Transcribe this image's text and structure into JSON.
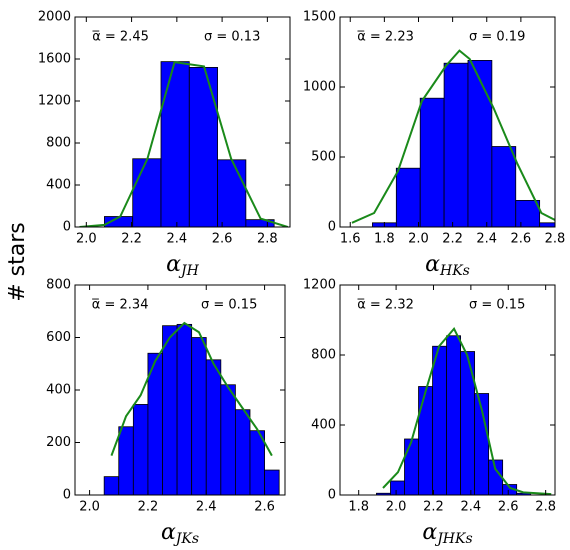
{
  "ylabel": "# stars",
  "chart_data": [
    {
      "type": "histogram",
      "xlabel": {
        "symbol": "α",
        "subscript": "JH"
      },
      "annotations": [
        "α̅ = 2.45",
        "σ =  0.13"
      ],
      "bins": [
        2.08,
        2.205,
        2.33,
        2.455,
        2.58,
        2.705,
        2.83
      ],
      "values": [
        100,
        650,
        1575,
        1520,
        640,
        70
      ],
      "color": "#0000ff",
      "line": {
        "color": "#1a8a1a",
        "x": [
          1.97,
          2.08,
          2.15,
          2.27,
          2.39,
          2.52,
          2.64,
          2.77,
          2.89
        ],
        "values": [
          0,
          20,
          100,
          650,
          1570,
          1530,
          650,
          80,
          0
        ]
      },
      "xlim": [
        1.95,
        2.9
      ],
      "ylim": [
        0,
        2000
      ],
      "xticks": [
        {
          "value": 2.0,
          "label": "2.0"
        },
        2.2,
        2.4,
        2.6,
        2.8
      ],
      "yticks": [
        0,
        400,
        800,
        1200,
        1600,
        2000
      ]
    },
    {
      "type": "histogram",
      "xlabel": {
        "symbol": "α",
        "subscript": "HKs"
      },
      "annotations": [
        "α̅ = 2.23",
        "σ =  0.19"
      ],
      "bins": [
        1.73,
        1.87,
        2.01,
        2.15,
        2.29,
        2.43,
        2.57,
        2.71,
        2.85
      ],
      "values": [
        30,
        420,
        920,
        1170,
        1190,
        575,
        190,
        30
      ],
      "color": "#0000ff",
      "line": {
        "color": "#1a8a1a",
        "x": [
          1.61,
          1.74,
          1.88,
          2.02,
          2.16,
          2.24,
          2.3,
          2.44,
          2.58,
          2.72,
          2.8
        ],
        "values": [
          30,
          100,
          400,
          900,
          1150,
          1260,
          1200,
          850,
          450,
          100,
          50
        ]
      },
      "xlim": [
        1.54,
        2.8
      ],
      "ylim": [
        0,
        1500
      ],
      "xticks": [
        1.6,
        1.8,
        {
          "value": 2.0,
          "label": "2.0"
        },
        2.2,
        2.4,
        2.6,
        2.8
      ],
      "yticks": [
        0,
        500,
        1000,
        1500
      ]
    },
    {
      "type": "histogram",
      "xlabel": {
        "symbol": "α",
        "subscript": "JKs"
      },
      "annotations": [
        "α̅ = 2.34",
        "σ =  0.15"
      ],
      "bins": [
        2.05,
        2.1,
        2.15,
        2.2,
        2.25,
        2.3,
        2.35,
        2.4,
        2.45,
        2.5,
        2.55,
        2.6,
        2.65
      ],
      "values": [
        70,
        260,
        345,
        540,
        645,
        650,
        600,
        515,
        420,
        325,
        245,
        95
      ],
      "color": "#0000ff",
      "line": {
        "color": "#1a8a1a",
        "x": [
          2.075,
          2.125,
          2.175,
          2.225,
          2.275,
          2.325,
          2.375,
          2.425,
          2.475,
          2.525,
          2.575,
          2.625
        ],
        "values": [
          150,
          300,
          380,
          510,
          600,
          655,
          620,
          500,
          410,
          330,
          250,
          150
        ]
      },
      "xlim": [
        1.95,
        2.67
      ],
      "ylim": [
        0,
        800
      ],
      "xticks": [
        {
          "value": 2.0,
          "label": "2.0"
        },
        2.2,
        2.4,
        2.6
      ],
      "yticks": [
        0,
        200,
        400,
        600,
        800
      ]
    },
    {
      "type": "histogram",
      "xlabel": {
        "symbol": "α",
        "subscript": "JHKs"
      },
      "annotations": [
        "α̅ = 2.32",
        "σ =  0.15"
      ],
      "bins": [
        1.895,
        1.97,
        2.045,
        2.12,
        2.195,
        2.27,
        2.345,
        2.42,
        2.495,
        2.57,
        2.645,
        2.72
      ],
      "values": [
        10,
        80,
        320,
        620,
        850,
        910,
        820,
        580,
        200,
        60,
        10
      ],
      "color": "#0000ff",
      "line": {
        "color": "#1a8a1a",
        "x": [
          1.93,
          2.01,
          2.08,
          2.16,
          2.23,
          2.31,
          2.38,
          2.46,
          2.53,
          2.61,
          2.68,
          2.83
        ],
        "values": [
          40,
          130,
          300,
          600,
          850,
          950,
          800,
          480,
          150,
          40,
          15,
          5
        ]
      },
      "xlim": [
        1.7,
        2.85
      ],
      "ylim": [
        0,
        1200
      ],
      "xticks": [
        1.8,
        {
          "value": 2.0,
          "label": "2.0"
        },
        2.2,
        2.4,
        2.6,
        2.8
      ],
      "yticks": [
        0,
        400,
        800,
        1200
      ]
    }
  ]
}
